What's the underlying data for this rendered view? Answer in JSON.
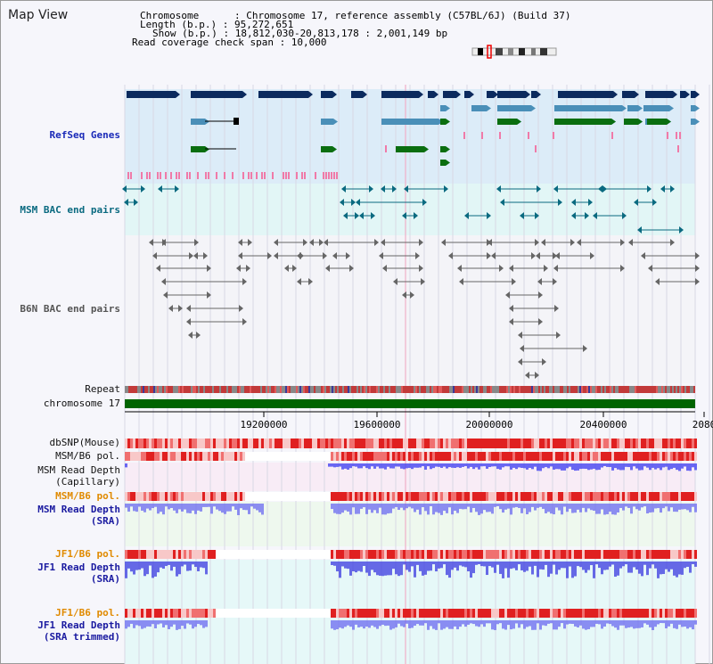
{
  "page": {
    "title": "Map View",
    "header": {
      "chromosome": "Chromosome      : Chromosome 17, reference assembly (C57BL/6J) (Build 37)",
      "length": "Length (b.p.) : 95,272,651",
      "show": "Show (b.p.) : 18,812,030-20,813,178 : 2,001,149 bp",
      "coverage": "Read coverage check span : 10,000"
    }
  },
  "tracks": {
    "refseq": "RefSeq Genes",
    "msm_bac": "MSM BAC end pairs",
    "b6n_bac": "B6N BAC end pairs",
    "repeat": "Repeat",
    "chromosome": "chromosome 17",
    "dbsnp": "dbSNP(Mouse)",
    "msm_b6_pol_1": "MSM/B6 pol.",
    "msm_depth_cap_1": "MSM Read Depth",
    "msm_depth_cap_2": "(Capillary)",
    "msm_b6_pol_2": "MSM/B6 pol.",
    "msm_depth_sra_1": "MSM Read Depth",
    "msm_depth_sra_2": "(SRA)",
    "jf1_b6_pol_1": "JF1/B6 pol.",
    "jf1_depth_sra_1": "JF1 Read Depth",
    "jf1_depth_sra_2": "(SRA)",
    "jf1_b6_pol_2": "JF1/B6 pol.",
    "jf1_depth_trim_1": "JF1 Read Depth",
    "jf1_depth_trim_2": "(SRA trimmed)"
  },
  "axis": {
    "ticks": [
      "19200000",
      "19600000",
      "20000000",
      "20400000",
      "2080"
    ]
  },
  "colors": {
    "refseq_label": "#1a2ab8",
    "msm_label": "#0a6a80",
    "b6n_label": "#555555",
    "pol_label": "#e08a00",
    "depth_label": "#1a1aa0",
    "gene_navy": "#0b2a5e",
    "gene_steel": "#4a8fb8",
    "gene_green": "#0a6e10",
    "pink": "#f07aa8",
    "bac_line": "#0a6a80",
    "b6n_line": "#666666",
    "chrom_bar": "#006400",
    "depth_blue": "#3a3af0"
  }
}
